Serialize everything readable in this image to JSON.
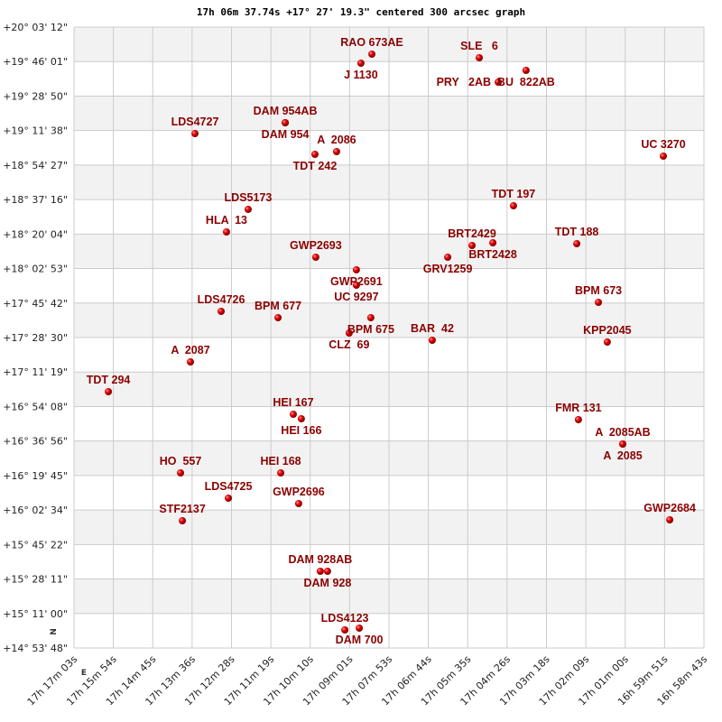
{
  "chart_data": {
    "type": "scatter",
    "title": "17h 06m 37.74s +17° 27' 19.3\" centered 300 arcsec graph",
    "xlabel": "",
    "ylabel": "",
    "x_unit": "right ascension (hours)",
    "y_unit": "declination (degrees)",
    "xlim": [
      17.28417,
      16.97861
    ],
    "ylim": [
      14.89667,
      20.05333
    ],
    "x_reversed": true,
    "grid": true,
    "alternating_row_bands": true,
    "x_tick_labels": [
      "17h 17m 03s",
      "17h 15m 54s",
      "17h 14m 45s",
      "17h 13m 36s",
      "17h 12m 28s",
      "17h 11m 19s",
      "17h 10m 10s",
      "17h 09m 01s",
      "17h 07m 53s",
      "17h 06m 44s",
      "17h 05m 35s",
      "17h 04m 26s",
      "17h 03m 18s",
      "17h 02m 09s",
      "17h 01m 00s",
      "16h 59m 51s",
      "16h 58m 43s"
    ],
    "y_tick_labels": [
      "+20° 03' 12\"",
      "+19° 46' 01\"",
      "+19° 28' 50\"",
      "+19° 11' 38\"",
      "+18° 54' 27\"",
      "+18° 37' 16\"",
      "+18° 20' 04\"",
      "+18° 02' 53\"",
      "+17° 45' 42\"",
      "+17° 28' 30\"",
      "+17° 11' 19\"",
      "+16° 54' 08\"",
      "+16° 36' 56\"",
      "+16° 19' 45\"",
      "+16° 02' 34\"",
      "+15° 45' 22\"",
      "+15° 28' 11\"",
      "+15° 11' 00\"",
      "+14° 53' 48\""
    ],
    "direction_marks": [
      "N",
      "E"
    ],
    "colors": {
      "point": "#dd0000",
      "label": "#8b0000",
      "band": "#f2f2f2",
      "grid": "#cccccc"
    },
    "points": [
      {
        "name": "RAO 673AE",
        "ra": 17.1397,
        "dec": 19.8285
      },
      {
        "name": "J 1130",
        "ra": 17.145,
        "dec": 19.7535
      },
      {
        "name": "SLE   6",
        "ra": 17.0876,
        "dec": 19.7985
      },
      {
        "name": "BU  822AB",
        "ra": 17.0649,
        "dec": 19.6936
      },
      {
        "name": "PRY   2AB",
        "ra": 17.0784,
        "dec": 19.5961
      },
      {
        "name": "DAM 954AB",
        "ra": 17.1817,
        "dec": 19.2588
      },
      {
        "name": "DAM 954",
        "ra": 17.1817,
        "dec": 19.2588
      },
      {
        "name": "LDS4727",
        "ra": 17.2255,
        "dec": 19.1689
      },
      {
        "name": "TDT 242",
        "ra": 17.1673,
        "dec": 18.9965
      },
      {
        "name": "A  2086",
        "ra": 17.1568,
        "dec": 19.019
      },
      {
        "name": "UC 3270",
        "ra": 16.9983,
        "dec": 18.9815
      },
      {
        "name": "TDT 197",
        "ra": 17.071,
        "dec": 18.5693
      },
      {
        "name": "LDS5173",
        "ra": 17.1997,
        "dec": 18.5393
      },
      {
        "name": "HLA  13",
        "ra": 17.2102,
        "dec": 18.3519
      },
      {
        "name": "BRT2429",
        "ra": 17.0911,
        "dec": 18.2395
      },
      {
        "name": "BRT2428",
        "ra": 17.081,
        "dec": 18.262
      },
      {
        "name": "TDT 188",
        "ra": 17.0403,
        "dec": 18.2545
      },
      {
        "name": "GWP2693",
        "ra": 17.1669,
        "dec": 18.142
      },
      {
        "name": "GRV1259",
        "ra": 17.1029,
        "dec": 18.142
      },
      {
        "name": "GWP2691",
        "ra": 17.1472,
        "dec": 18.0371
      },
      {
        "name": "UC 9297",
        "ra": 17.1472,
        "dec": 17.9097
      },
      {
        "name": "BPM 673",
        "ra": 17.0298,
        "dec": 17.7673
      },
      {
        "name": "LDS4726",
        "ra": 17.2128,
        "dec": 17.6923
      },
      {
        "name": "BPM 677",
        "ra": 17.1852,
        "dec": 17.6398
      },
      {
        "name": "BPM 675",
        "ra": 17.1402,
        "dec": 17.6398
      },
      {
        "name": "CLZ  69",
        "ra": 17.1507,
        "dec": 17.5124
      },
      {
        "name": "BAR  42",
        "ra": 17.1104,
        "dec": 17.4525
      },
      {
        "name": "KPP2045",
        "ra": 17.0255,
        "dec": 17.4375
      },
      {
        "name": "A  2087",
        "ra": 17.2277,
        "dec": 17.2726
      },
      {
        "name": "TDT 294",
        "ra": 17.2675,
        "dec": 17.0252
      },
      {
        "name": "HEI 167",
        "ra": 17.1778,
        "dec": 16.8379
      },
      {
        "name": "HEI 166",
        "ra": 17.1739,
        "dec": 16.8004
      },
      {
        "name": "FMR 131",
        "ra": 17.0395,
        "dec": 16.7929
      },
      {
        "name": "A  2085AB",
        "ra": 17.018,
        "dec": 16.5905
      },
      {
        "name": "A  2085",
        "ra": 17.018,
        "dec": 16.5905
      },
      {
        "name": "HO  557",
        "ra": 17.2325,
        "dec": 16.3507
      },
      {
        "name": "HEI 168",
        "ra": 17.1839,
        "dec": 16.3507
      },
      {
        "name": "LDS4725",
        "ra": 17.2093,
        "dec": 16.1408
      },
      {
        "name": "GWP2696",
        "ra": 17.1752,
        "dec": 16.0958
      },
      {
        "name": "STF2137",
        "ra": 17.2316,
        "dec": 15.9534
      },
      {
        "name": "GWP2684",
        "ra": 16.9952,
        "dec": 15.9609
      },
      {
        "name": "DAM 928AB",
        "ra": 17.1647,
        "dec": 15.5337
      },
      {
        "name": "DAM 928",
        "ra": 17.1612,
        "dec": 15.5337
      },
      {
        "name": "LDS4123",
        "ra": 17.1528,
        "dec": 15.0465
      },
      {
        "name": "DAM 700",
        "ra": 17.1458,
        "dec": 15.0615
      }
    ]
  }
}
